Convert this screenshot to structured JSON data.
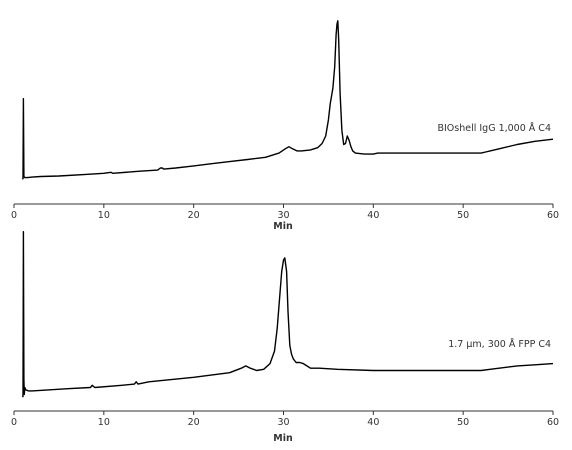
{
  "chart_data": [
    {
      "type": "line",
      "series": [
        {
          "name": "BIOshell IgG 1,000 Å C4",
          "x": [
            0.9,
            1.0,
            1.05,
            1.1,
            1.2,
            1.5,
            2,
            3,
            5,
            8,
            10,
            10.8,
            11,
            14,
            16,
            16.3,
            16.5,
            16.7,
            18,
            20,
            22,
            24,
            26,
            28,
            29.5,
            30.2,
            30.6,
            31.0,
            31.5,
            32,
            33,
            33.8,
            34.3,
            34.7,
            35.0,
            35.2,
            35.5,
            35.7,
            35.85,
            35.95,
            36.05,
            36.15,
            36.3,
            36.5,
            36.7,
            36.9,
            37.1,
            37.3,
            37.5,
            37.7,
            38,
            39,
            40,
            40.5,
            41,
            42,
            44,
            46,
            48,
            50,
            52,
            52.5,
            53,
            54,
            56,
            58,
            60
          ],
          "y": [
            0,
            0,
            7.5,
            0.2,
            0.1,
            0.1,
            0.15,
            0.2,
            0.25,
            0.4,
            0.5,
            0.6,
            0.5,
            0.7,
            0.8,
            1.0,
            1.0,
            0.9,
            1.0,
            1.2,
            1.4,
            1.6,
            1.8,
            2.0,
            2.4,
            2.8,
            3.0,
            2.8,
            2.6,
            2.6,
            2.7,
            2.9,
            3.3,
            4.0,
            5.5,
            7.0,
            8.5,
            10.5,
            13.5,
            14.5,
            14.8,
            13.0,
            8.0,
            4.5,
            3.2,
            3.3,
            4.0,
            3.6,
            3.0,
            2.6,
            2.4,
            2.3,
            2.3,
            2.4,
            2.4,
            2.4,
            2.4,
            2.4,
            2.4,
            2.4,
            2.4,
            2.5,
            2.6,
            2.8,
            3.2,
            3.5,
            3.7
          ]
        }
      ],
      "xlim": [
        0,
        60
      ],
      "ylim": [
        -2,
        16
      ],
      "xticks": [
        "0",
        "10",
        "20",
        "30",
        "40",
        "50",
        "60"
      ],
      "xlabel": "Min",
      "ylabel": "",
      "legend": "right, near end of trace",
      "grid": false
    },
    {
      "type": "line",
      "series": [
        {
          "name": "1.7 µm, 300 Å FPP C4",
          "x": [
            0.9,
            1.0,
            1.05,
            1.1,
            1.15,
            1.2,
            1.3,
            1.6,
            2,
            4,
            6,
            8.5,
            8.7,
            9,
            12,
            13.4,
            13.6,
            13.8,
            15,
            20,
            24,
            25.3,
            25.8,
            26.3,
            27,
            27.8,
            28.5,
            29.0,
            29.3,
            29.6,
            29.8,
            30.0,
            30.15,
            30.35,
            30.5,
            30.7,
            30.9,
            31.1,
            31.4,
            31.8,
            32.2,
            32.6,
            33,
            33.5,
            34,
            36,
            40,
            45,
            50,
            52,
            53,
            54,
            56,
            58,
            60
          ],
          "y": [
            -0.5,
            -0.5,
            14,
            1.0,
            -0.3,
            0.3,
            0.1,
            0.0,
            0.0,
            0.1,
            0.2,
            0.3,
            0.5,
            0.3,
            0.5,
            0.6,
            0.8,
            0.6,
            0.8,
            1.2,
            1.6,
            2.0,
            2.2,
            2.0,
            1.8,
            1.9,
            2.4,
            3.5,
            5.5,
            8.5,
            10.5,
            11.5,
            11.7,
            10.5,
            7.0,
            4.0,
            3.2,
            2.8,
            2.5,
            2.5,
            2.4,
            2.2,
            2.0,
            2.0,
            2.0,
            1.9,
            1.8,
            1.8,
            1.8,
            1.8,
            1.9,
            2.0,
            2.2,
            2.3,
            2.4
          ]
        }
      ],
      "xlim": [
        0,
        60
      ],
      "ylim": [
        -1.5,
        14.5
      ],
      "xticks": [
        "0",
        "10",
        "20",
        "30",
        "40",
        "50",
        "60"
      ],
      "xlabel": "Min",
      "ylabel": "",
      "legend": "right, near end of trace",
      "grid": false
    }
  ]
}
